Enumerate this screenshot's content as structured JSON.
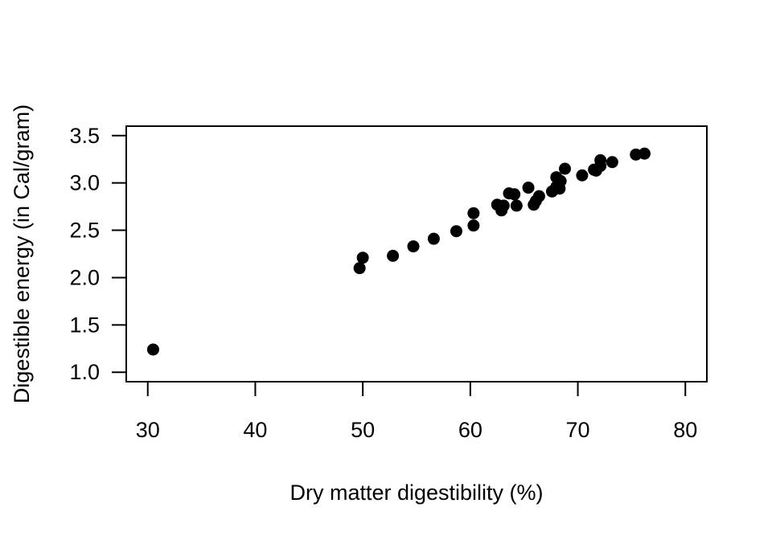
{
  "chart_data": {
    "type": "scatter",
    "title": "",
    "xlabel": "Dry matter digestibility (%)",
    "ylabel": "Digestible energy (in Cal/gram)",
    "xlim": [
      28,
      82
    ],
    "ylim": [
      0.9,
      3.6
    ],
    "x_ticks": [
      30,
      40,
      50,
      60,
      70,
      80
    ],
    "y_ticks": [
      1.0,
      1.5,
      2.0,
      2.5,
      3.0,
      3.5
    ],
    "x_tick_labels": [
      "30",
      "40",
      "50",
      "60",
      "70",
      "80"
    ],
    "y_tick_labels": [
      "1.0",
      "1.5",
      "2.0",
      "2.5",
      "3.0",
      "3.5"
    ],
    "grid": false,
    "marker": "filled-circle",
    "marker_color": "#000000",
    "points": [
      {
        "x": 30.5,
        "y": 1.24
      },
      {
        "x": 49.7,
        "y": 2.1
      },
      {
        "x": 50.0,
        "y": 2.21
      },
      {
        "x": 52.8,
        "y": 2.23
      },
      {
        "x": 54.7,
        "y": 2.33
      },
      {
        "x": 56.6,
        "y": 2.41
      },
      {
        "x": 58.7,
        "y": 2.49
      },
      {
        "x": 60.3,
        "y": 2.55
      },
      {
        "x": 60.3,
        "y": 2.68
      },
      {
        "x": 62.5,
        "y": 2.77
      },
      {
        "x": 62.9,
        "y": 2.71
      },
      {
        "x": 63.1,
        "y": 2.76
      },
      {
        "x": 63.6,
        "y": 2.89
      },
      {
        "x": 64.1,
        "y": 2.88
      },
      {
        "x": 64.3,
        "y": 2.76
      },
      {
        "x": 65.4,
        "y": 2.95
      },
      {
        "x": 65.9,
        "y": 2.77
      },
      {
        "x": 66.1,
        "y": 2.81
      },
      {
        "x": 66.4,
        "y": 2.86
      },
      {
        "x": 67.6,
        "y": 2.91
      },
      {
        "x": 68.0,
        "y": 2.96
      },
      {
        "x": 68.0,
        "y": 3.06
      },
      {
        "x": 68.3,
        "y": 2.94
      },
      {
        "x": 68.4,
        "y": 3.02
      },
      {
        "x": 68.8,
        "y": 3.15
      },
      {
        "x": 70.4,
        "y": 3.08
      },
      {
        "x": 71.5,
        "y": 3.14
      },
      {
        "x": 71.7,
        "y": 3.13
      },
      {
        "x": 72.1,
        "y": 3.18
      },
      {
        "x": 72.1,
        "y": 3.24
      },
      {
        "x": 73.2,
        "y": 3.22
      },
      {
        "x": 75.4,
        "y": 3.3
      },
      {
        "x": 76.2,
        "y": 3.31
      }
    ]
  }
}
